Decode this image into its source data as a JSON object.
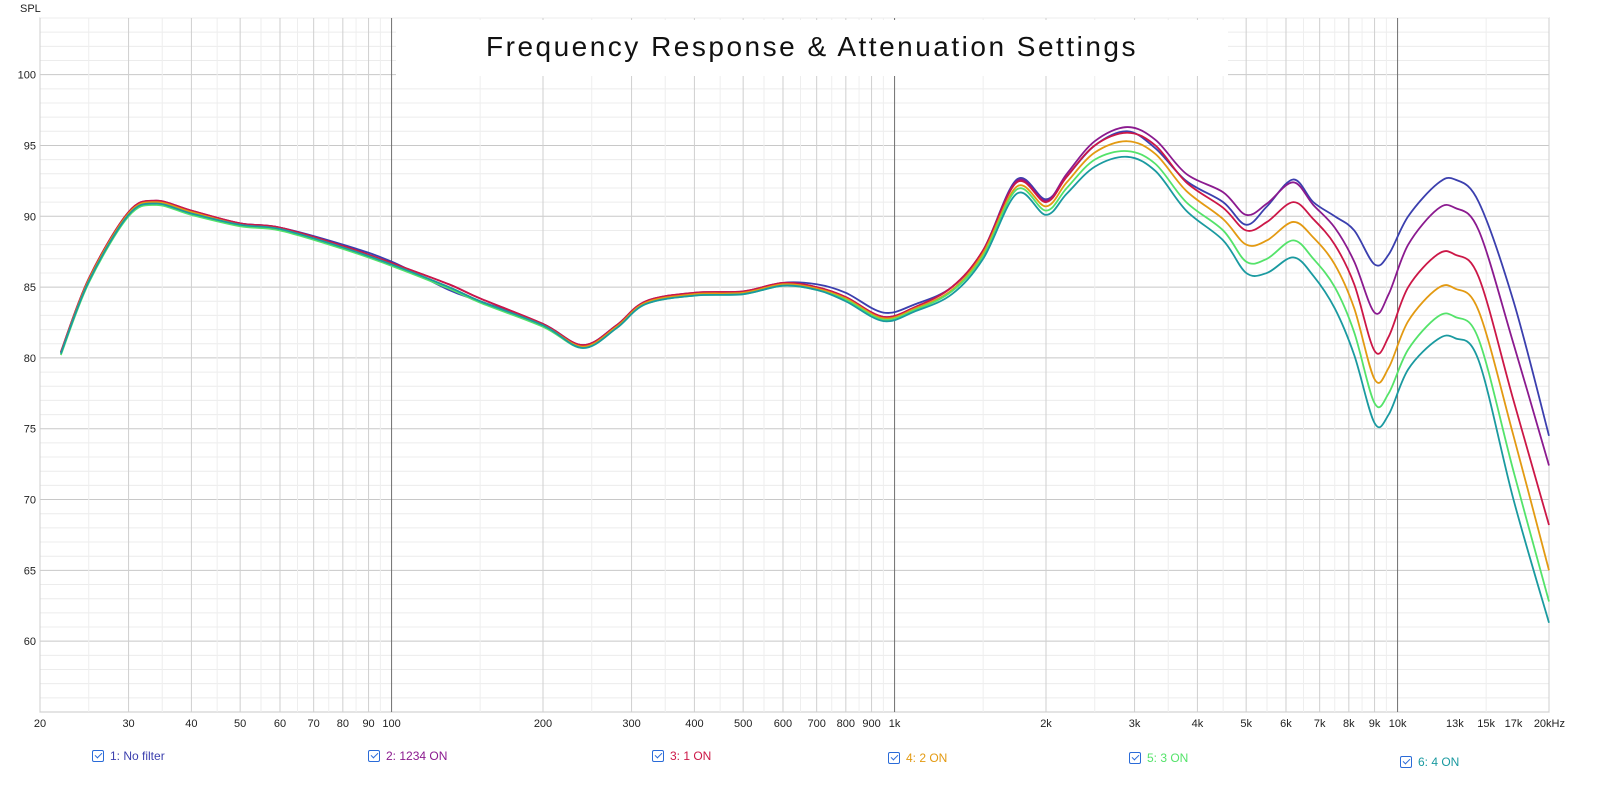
{
  "chart_data": {
    "type": "line",
    "title": "Frequency Response & Attenuation Settings",
    "ylabel": "SPL",
    "x_unit": "kHz",
    "xscale": "log",
    "xlim": [
      20,
      20000
    ],
    "ylim": [
      55,
      104
    ],
    "y_ticks": [
      60,
      65,
      70,
      75,
      80,
      85,
      90,
      95,
      100
    ],
    "x_ticks": [
      {
        "v": 20,
        "label": "20"
      },
      {
        "v": 30,
        "label": "30"
      },
      {
        "v": 40,
        "label": "40"
      },
      {
        "v": 50,
        "label": "50"
      },
      {
        "v": 60,
        "label": "60"
      },
      {
        "v": 70,
        "label": "70"
      },
      {
        "v": 80,
        "label": "80"
      },
      {
        "v": 90,
        "label": "90"
      },
      {
        "v": 100,
        "label": "100"
      },
      {
        "v": 200,
        "label": "200"
      },
      {
        "v": 300,
        "label": "300"
      },
      {
        "v": 400,
        "label": "400"
      },
      {
        "v": 500,
        "label": "500"
      },
      {
        "v": 600,
        "label": "600"
      },
      {
        "v": 700,
        "label": "700"
      },
      {
        "v": 800,
        "label": "800"
      },
      {
        "v": 900,
        "label": "900"
      },
      {
        "v": 1000,
        "label": "1k"
      },
      {
        "v": 2000,
        "label": "2k"
      },
      {
        "v": 3000,
        "label": "3k"
      },
      {
        "v": 4000,
        "label": "4k"
      },
      {
        "v": 5000,
        "label": "5k"
      },
      {
        "v": 6000,
        "label": "6k"
      },
      {
        "v": 7000,
        "label": "7k"
      },
      {
        "v": 8000,
        "label": "8k"
      },
      {
        "v": 9000,
        "label": "9k"
      },
      {
        "v": 10000,
        "label": "10k"
      },
      {
        "v": 13000,
        "label": "13k"
      },
      {
        "v": 15000,
        "label": "15k"
      },
      {
        "v": 17000,
        "label": "17k"
      },
      {
        "v": 20000,
        "label": "20kHz"
      }
    ],
    "grid": true,
    "series": [
      {
        "name": "1: No filter",
        "color": "#3b3fae",
        "points": [
          [
            22,
            80.3
          ],
          [
            25,
            85.5
          ],
          [
            30,
            90.2
          ],
          [
            34,
            91.0
          ],
          [
            40,
            90.3
          ],
          [
            50,
            89.5
          ],
          [
            60,
            89.2
          ],
          [
            80,
            88.0
          ],
          [
            100,
            86.8
          ],
          [
            130,
            84.8
          ],
          [
            150,
            84.0
          ],
          [
            200,
            82.4
          ],
          [
            240,
            80.9
          ],
          [
            280,
            82.3
          ],
          [
            320,
            83.9
          ],
          [
            400,
            84.5
          ],
          [
            500,
            84.6
          ],
          [
            600,
            85.3
          ],
          [
            700,
            85.2
          ],
          [
            800,
            84.6
          ],
          [
            950,
            83.2
          ],
          [
            1100,
            83.8
          ],
          [
            1300,
            85.0
          ],
          [
            1500,
            87.6
          ],
          [
            1750,
            92.6
          ],
          [
            2000,
            91.2
          ],
          [
            2200,
            92.8
          ],
          [
            2500,
            95.0
          ],
          [
            2900,
            96.0
          ],
          [
            3300,
            94.8
          ],
          [
            3800,
            92.5
          ],
          [
            4500,
            91.0
          ],
          [
            5000,
            89.4
          ],
          [
            5500,
            90.7
          ],
          [
            6200,
            92.6
          ],
          [
            6800,
            91.0
          ],
          [
            7500,
            90.0
          ],
          [
            8200,
            89.0
          ],
          [
            9000,
            86.6
          ],
          [
            9600,
            87.3
          ],
          [
            10500,
            90.0
          ],
          [
            12000,
            92.3
          ],
          [
            13000,
            92.6
          ],
          [
            14500,
            91.0
          ],
          [
            17000,
            84.0
          ],
          [
            20000,
            74.5
          ]
        ]
      },
      {
        "name": "2: 1234 ON",
        "color": "#8b1a8f",
        "points": [
          [
            22,
            80.4
          ],
          [
            25,
            85.6
          ],
          [
            30,
            90.3
          ],
          [
            34,
            91.1
          ],
          [
            40,
            90.4
          ],
          [
            50,
            89.5
          ],
          [
            60,
            89.2
          ],
          [
            80,
            87.9
          ],
          [
            100,
            86.7
          ],
          [
            130,
            85.2
          ],
          [
            150,
            84.2
          ],
          [
            200,
            82.4
          ],
          [
            240,
            80.9
          ],
          [
            280,
            82.3
          ],
          [
            320,
            84.0
          ],
          [
            400,
            84.6
          ],
          [
            500,
            84.7
          ],
          [
            600,
            85.3
          ],
          [
            700,
            85.0
          ],
          [
            800,
            84.3
          ],
          [
            950,
            82.9
          ],
          [
            1100,
            83.6
          ],
          [
            1300,
            85.0
          ],
          [
            1500,
            87.6
          ],
          [
            1750,
            92.5
          ],
          [
            2000,
            91.1
          ],
          [
            2200,
            93.0
          ],
          [
            2500,
            95.3
          ],
          [
            2900,
            96.3
          ],
          [
            3300,
            95.4
          ],
          [
            3800,
            93.0
          ],
          [
            4500,
            91.7
          ],
          [
            5000,
            90.1
          ],
          [
            5500,
            90.9
          ],
          [
            6200,
            92.4
          ],
          [
            6800,
            90.8
          ],
          [
            7500,
            89.2
          ],
          [
            8200,
            86.8
          ],
          [
            9000,
            83.2
          ],
          [
            9600,
            84.5
          ],
          [
            10500,
            88.0
          ],
          [
            12000,
            90.5
          ],
          [
            13000,
            90.6
          ],
          [
            14500,
            89.0
          ],
          [
            17000,
            81.0
          ],
          [
            20000,
            72.4
          ]
        ]
      },
      {
        "name": "3: 1 ON",
        "color": "#cc1747",
        "points": [
          [
            22,
            80.4
          ],
          [
            25,
            85.6
          ],
          [
            30,
            90.3
          ],
          [
            34,
            91.1
          ],
          [
            40,
            90.4
          ],
          [
            50,
            89.5
          ],
          [
            60,
            89.2
          ],
          [
            80,
            87.9
          ],
          [
            100,
            86.7
          ],
          [
            130,
            85.2
          ],
          [
            150,
            84.2
          ],
          [
            200,
            82.4
          ],
          [
            240,
            80.9
          ],
          [
            280,
            82.3
          ],
          [
            320,
            84.0
          ],
          [
            400,
            84.6
          ],
          [
            500,
            84.7
          ],
          [
            600,
            85.3
          ],
          [
            700,
            85.0
          ],
          [
            800,
            84.3
          ],
          [
            950,
            82.9
          ],
          [
            1100,
            83.6
          ],
          [
            1300,
            85.0
          ],
          [
            1500,
            87.6
          ],
          [
            1750,
            92.4
          ],
          [
            2000,
            91.0
          ],
          [
            2200,
            92.8
          ],
          [
            2500,
            95.0
          ],
          [
            2900,
            95.9
          ],
          [
            3300,
            95.0
          ],
          [
            3800,
            92.4
          ],
          [
            4500,
            90.6
          ],
          [
            5000,
            89.0
          ],
          [
            5500,
            89.6
          ],
          [
            6200,
            91.0
          ],
          [
            6800,
            89.8
          ],
          [
            7500,
            88.0
          ],
          [
            8200,
            85.2
          ],
          [
            9000,
            80.5
          ],
          [
            9600,
            81.5
          ],
          [
            10500,
            85.0
          ],
          [
            12000,
            87.3
          ],
          [
            13000,
            87.3
          ],
          [
            14500,
            85.7
          ],
          [
            17000,
            77.0
          ],
          [
            20000,
            68.2
          ]
        ]
      },
      {
        "name": "4: 2 ON",
        "color": "#e39a12",
        "points": [
          [
            22,
            80.3
          ],
          [
            25,
            85.5
          ],
          [
            30,
            90.2
          ],
          [
            34,
            91.0
          ],
          [
            40,
            90.3
          ],
          [
            50,
            89.4
          ],
          [
            60,
            89.1
          ],
          [
            80,
            87.8
          ],
          [
            100,
            86.6
          ],
          [
            130,
            85.0
          ],
          [
            150,
            84.0
          ],
          [
            200,
            82.3
          ],
          [
            240,
            80.8
          ],
          [
            280,
            82.2
          ],
          [
            320,
            83.9
          ],
          [
            400,
            84.5
          ],
          [
            500,
            84.6
          ],
          [
            600,
            85.2
          ],
          [
            700,
            84.9
          ],
          [
            800,
            84.2
          ],
          [
            950,
            82.8
          ],
          [
            1100,
            83.5
          ],
          [
            1300,
            84.8
          ],
          [
            1500,
            87.4
          ],
          [
            1750,
            92.1
          ],
          [
            2000,
            90.7
          ],
          [
            2200,
            92.4
          ],
          [
            2500,
            94.5
          ],
          [
            2900,
            95.3
          ],
          [
            3300,
            94.4
          ],
          [
            3800,
            91.8
          ],
          [
            4500,
            89.8
          ],
          [
            5000,
            88.0
          ],
          [
            5500,
            88.3
          ],
          [
            6200,
            89.6
          ],
          [
            6800,
            88.5
          ],
          [
            7500,
            86.6
          ],
          [
            8200,
            83.5
          ],
          [
            9000,
            78.5
          ],
          [
            9600,
            79.3
          ],
          [
            10500,
            82.6
          ],
          [
            12000,
            84.9
          ],
          [
            13000,
            84.9
          ],
          [
            14500,
            83.3
          ],
          [
            17000,
            74.5
          ],
          [
            20000,
            65.0
          ]
        ]
      },
      {
        "name": "5: 3 ON",
        "color": "#54e36a",
        "points": [
          [
            22,
            80.2
          ],
          [
            25,
            85.3
          ],
          [
            30,
            90.0
          ],
          [
            34,
            90.8
          ],
          [
            40,
            90.1
          ],
          [
            50,
            89.3
          ],
          [
            60,
            89.0
          ],
          [
            80,
            87.7
          ],
          [
            100,
            86.5
          ],
          [
            130,
            84.9
          ],
          [
            150,
            83.9
          ],
          [
            200,
            82.2
          ],
          [
            240,
            80.7
          ],
          [
            280,
            82.1
          ],
          [
            320,
            83.8
          ],
          [
            400,
            84.4
          ],
          [
            500,
            84.5
          ],
          [
            600,
            85.1
          ],
          [
            700,
            84.8
          ],
          [
            800,
            84.1
          ],
          [
            950,
            82.7
          ],
          [
            1100,
            83.4
          ],
          [
            1300,
            84.7
          ],
          [
            1500,
            87.2
          ],
          [
            1750,
            91.9
          ],
          [
            2000,
            90.4
          ],
          [
            2200,
            92.0
          ],
          [
            2500,
            94.0
          ],
          [
            2900,
            94.6
          ],
          [
            3300,
            93.7
          ],
          [
            3800,
            91.0
          ],
          [
            4500,
            89.0
          ],
          [
            5000,
            86.8
          ],
          [
            5500,
            87.0
          ],
          [
            6200,
            88.3
          ],
          [
            6800,
            87.0
          ],
          [
            7500,
            85.0
          ],
          [
            8200,
            81.8
          ],
          [
            9000,
            76.8
          ],
          [
            9600,
            77.5
          ],
          [
            10500,
            80.6
          ],
          [
            12000,
            82.9
          ],
          [
            13000,
            82.9
          ],
          [
            14500,
            81.3
          ],
          [
            17000,
            72.0
          ],
          [
            20000,
            62.8
          ]
        ]
      },
      {
        "name": "6: 4 ON",
        "color": "#1a9aa0",
        "points": [
          [
            22,
            80.3
          ],
          [
            25,
            85.4
          ],
          [
            30,
            90.1
          ],
          [
            34,
            90.9
          ],
          [
            40,
            90.2
          ],
          [
            50,
            89.4
          ],
          [
            60,
            89.1
          ],
          [
            80,
            87.8
          ],
          [
            100,
            86.6
          ],
          [
            130,
            85.0
          ],
          [
            150,
            84.0
          ],
          [
            200,
            82.3
          ],
          [
            240,
            80.7
          ],
          [
            280,
            82.1
          ],
          [
            320,
            83.8
          ],
          [
            400,
            84.4
          ],
          [
            500,
            84.5
          ],
          [
            600,
            85.1
          ],
          [
            700,
            84.8
          ],
          [
            800,
            84.0
          ],
          [
            950,
            82.6
          ],
          [
            1100,
            83.3
          ],
          [
            1300,
            84.5
          ],
          [
            1500,
            87.0
          ],
          [
            1750,
            91.6
          ],
          [
            2000,
            90.1
          ],
          [
            2200,
            91.6
          ],
          [
            2500,
            93.5
          ],
          [
            2900,
            94.2
          ],
          [
            3300,
            93.2
          ],
          [
            3800,
            90.4
          ],
          [
            4500,
            88.3
          ],
          [
            5000,
            86.0
          ],
          [
            5500,
            86.0
          ],
          [
            6200,
            87.1
          ],
          [
            6800,
            85.8
          ],
          [
            7500,
            83.5
          ],
          [
            8200,
            80.2
          ],
          [
            9000,
            75.4
          ],
          [
            9600,
            76.0
          ],
          [
            10500,
            79.2
          ],
          [
            12000,
            81.3
          ],
          [
            13000,
            81.4
          ],
          [
            14500,
            79.8
          ],
          [
            17000,
            70.0
          ],
          [
            20000,
            61.3
          ]
        ]
      }
    ]
  },
  "legend": {
    "items": [
      {
        "label": "1: No filter",
        "color": "#3b3fae"
      },
      {
        "label": "2: 1234 ON",
        "color": "#8b1a8f"
      },
      {
        "label": "3: 1 ON",
        "color": "#cc1747"
      },
      {
        "label": "4: 2 ON",
        "color": "#e39a12"
      },
      {
        "label": "5: 3 ON",
        "color": "#54e36a"
      },
      {
        "label": "6: 4 ON",
        "color": "#1a9aa0"
      }
    ]
  }
}
